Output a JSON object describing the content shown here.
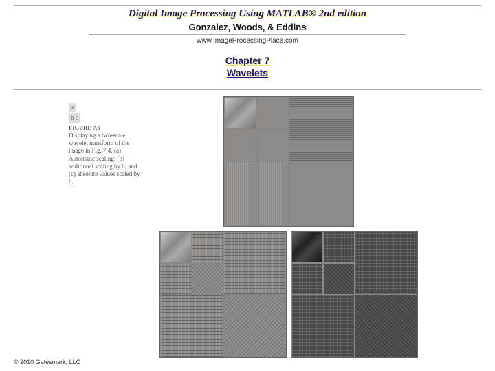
{
  "header": {
    "title": "Digital Image Processing Using MATLAB®  2nd edition",
    "authors": "Gonzalez, Woods, & Eddins",
    "url": "www.ImageProcessingPlace.com"
  },
  "chapter": {
    "line1": "Chapter 7",
    "line2": "Wavelets"
  },
  "caption": {
    "ab1": "a",
    "ab2": "b c",
    "head": "FIGURE 7.5",
    "body": "Displaying a two-scale wavelet transform of the image in Fig. 7.4: (a) Automatic scaling; (b) additional scaling by 8; and (c) absolute values scaled by 8."
  },
  "figures": {
    "panels": {
      "a": {
        "bg": "#8d8a87",
        "type": "auto-scale"
      },
      "b": {
        "bg": "#8d8a87",
        "type": "scale-by-8"
      },
      "c": {
        "bg": "#4a4846",
        "type": "abs-scale-by-8"
      }
    },
    "border_color": "#888888"
  },
  "footer": {
    "copyright": "© 2010 Gatesmark, LLC"
  },
  "colors": {
    "title_color": "#1a1a5a",
    "shadow_color": "#f5e47a",
    "line_color": "#aaaaaa",
    "background": "#ffffff"
  }
}
